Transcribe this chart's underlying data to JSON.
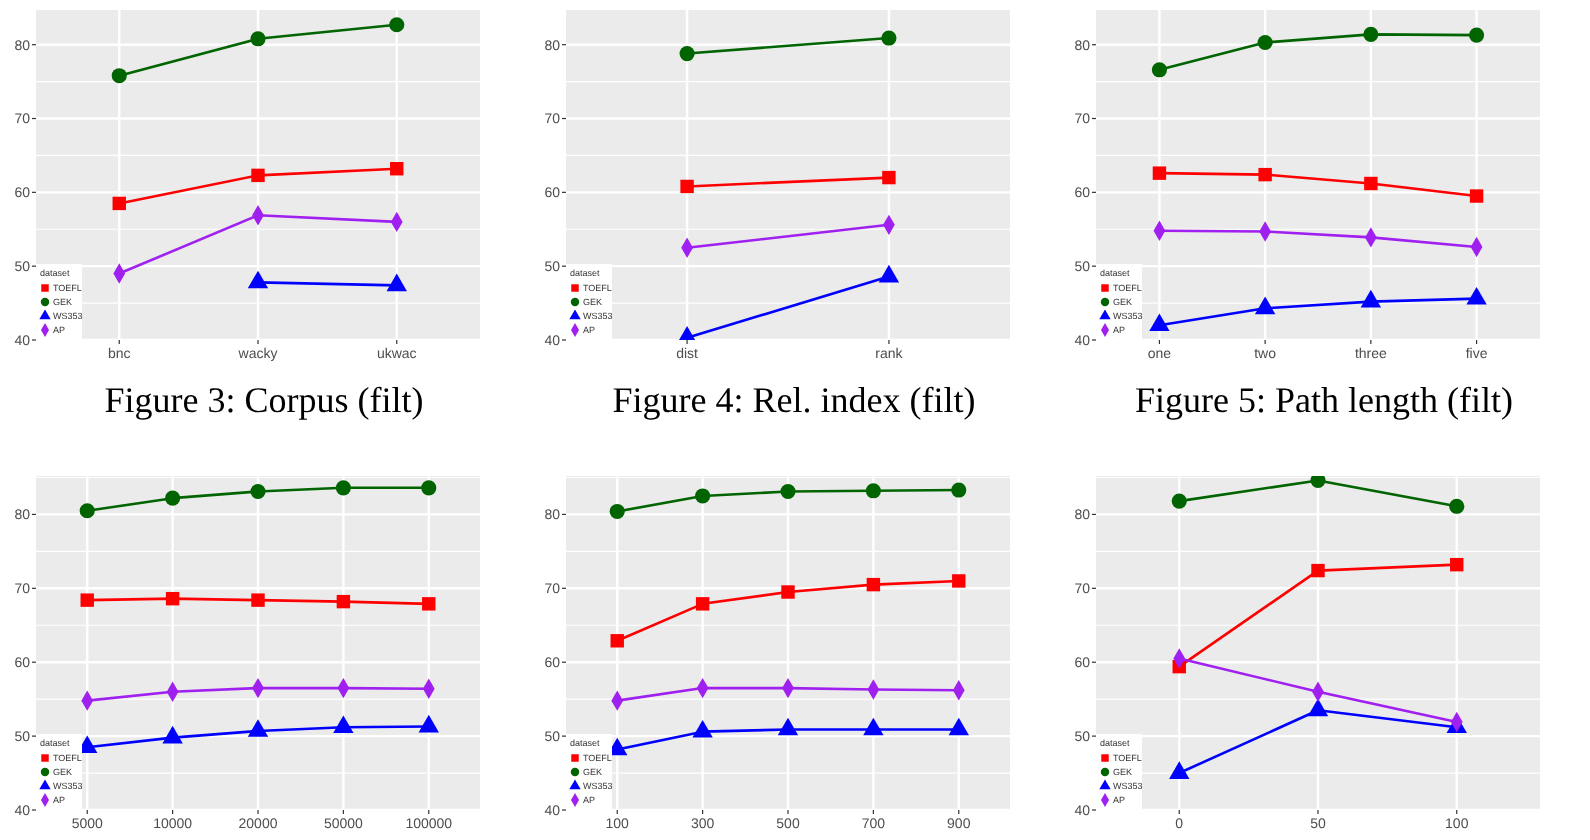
{
  "chart_data": [
    {
      "type": "line",
      "categories": [
        "bnc",
        "wacky",
        "ukwac"
      ],
      "ylim": [
        40,
        84.7
      ],
      "yticks": [
        40,
        50,
        60,
        70,
        80
      ],
      "grid": true,
      "legend": "bottom left",
      "legend_title": "dataset",
      "annotations": [
        "Figure 3: Corpus (filt)"
      ],
      "series": [
        {
          "name": "TOEFL",
          "color": "#ff0000",
          "marker": "square",
          "values": [
            58.5,
            62.3,
            63.2
          ]
        },
        {
          "name": "GEK",
          "color": "#006400",
          "marker": "circle",
          "values": [
            75.8,
            80.8,
            82.7
          ]
        },
        {
          "name": "WS353",
          "color": "#0000ff",
          "marker": "triangle",
          "values": [
            null,
            47.8,
            47.4
          ]
        },
        {
          "name": "AP",
          "color": "#a020f0",
          "marker": "diamond",
          "values": [
            49.0,
            56.9,
            56.0
          ]
        }
      ]
    },
    {
      "type": "line",
      "categories": [
        "dist",
        "rank"
      ],
      "ylim": [
        40,
        84.7
      ],
      "yticks": [
        40,
        50,
        60,
        70,
        80
      ],
      "grid": true,
      "legend": "bottom left",
      "legend_title": "dataset",
      "annotations": [
        "Figure 4: Rel. index (filt)"
      ],
      "series": [
        {
          "name": "TOEFL",
          "color": "#ff0000",
          "marker": "square",
          "values": [
            60.8,
            62.0
          ]
        },
        {
          "name": "GEK",
          "color": "#006400",
          "marker": "circle",
          "values": [
            78.8,
            80.9
          ]
        },
        {
          "name": "WS353",
          "color": "#0000ff",
          "marker": "triangle",
          "values": [
            40.3,
            48.6
          ]
        },
        {
          "name": "AP",
          "color": "#a020f0",
          "marker": "diamond",
          "values": [
            52.5,
            55.6
          ]
        }
      ]
    },
    {
      "type": "line",
      "categories": [
        "one",
        "two",
        "three",
        "five"
      ],
      "ylim": [
        40,
        84.7
      ],
      "yticks": [
        40,
        50,
        60,
        70,
        80
      ],
      "grid": true,
      "legend": "bottom left",
      "legend_title": "dataset",
      "annotations": [
        "Figure 5: Path length (filt)"
      ],
      "series": [
        {
          "name": "TOEFL",
          "color": "#ff0000",
          "marker": "square",
          "values": [
            62.6,
            62.4,
            61.2,
            59.5
          ]
        },
        {
          "name": "GEK",
          "color": "#006400",
          "marker": "circle",
          "values": [
            76.6,
            80.3,
            81.4,
            81.3
          ]
        },
        {
          "name": "WS353",
          "color": "#0000ff",
          "marker": "triangle",
          "values": [
            42.0,
            44.3,
            45.2,
            45.6
          ]
        },
        {
          "name": "AP",
          "color": "#a020f0",
          "marker": "diamond",
          "values": [
            54.8,
            54.7,
            53.9,
            52.6
          ]
        }
      ]
    },
    {
      "type": "line",
      "categories": [
        "5000",
        "10000",
        "20000",
        "50000",
        "100000"
      ],
      "ylim": [
        40,
        85.2
      ],
      "yticks": [
        40,
        50,
        60,
        70,
        80
      ],
      "grid": true,
      "legend": "bottom left",
      "legend_title": "dataset",
      "series": [
        {
          "name": "TOEFL",
          "color": "#ff0000",
          "marker": "square",
          "values": [
            68.4,
            68.6,
            68.4,
            68.2,
            67.9
          ]
        },
        {
          "name": "GEK",
          "color": "#006400",
          "marker": "circle",
          "values": [
            80.5,
            82.2,
            83.1,
            83.6,
            83.6
          ]
        },
        {
          "name": "WS353",
          "color": "#0000ff",
          "marker": "triangle",
          "values": [
            48.5,
            49.8,
            50.7,
            51.2,
            51.3
          ]
        },
        {
          "name": "AP",
          "color": "#a020f0",
          "marker": "diamond",
          "values": [
            54.8,
            56.0,
            56.5,
            56.5,
            56.4
          ]
        }
      ]
    },
    {
      "type": "line",
      "categories": [
        "100",
        "300",
        "500",
        "700",
        "900"
      ],
      "ylim": [
        40,
        85.2
      ],
      "yticks": [
        40,
        50,
        60,
        70,
        80
      ],
      "grid": true,
      "legend": "bottom left",
      "legend_title": "dataset",
      "series": [
        {
          "name": "TOEFL",
          "color": "#ff0000",
          "marker": "square",
          "values": [
            62.9,
            67.9,
            69.5,
            70.5,
            71.0
          ]
        },
        {
          "name": "GEK",
          "color": "#006400",
          "marker": "circle",
          "values": [
            80.4,
            82.5,
            83.1,
            83.2,
            83.3
          ]
        },
        {
          "name": "WS353",
          "color": "#0000ff",
          "marker": "triangle",
          "values": [
            48.2,
            50.6,
            50.9,
            50.9,
            50.9
          ]
        },
        {
          "name": "AP",
          "color": "#a020f0",
          "marker": "diamond",
          "values": [
            54.8,
            56.5,
            56.5,
            56.3,
            56.2
          ]
        }
      ]
    },
    {
      "type": "line",
      "categories": [
        "0",
        "50",
        "100"
      ],
      "ylim": [
        40,
        85.2
      ],
      "yticks": [
        40,
        50,
        60,
        70,
        80
      ],
      "grid": true,
      "legend": "bottom left",
      "legend_title": "dataset",
      "series": [
        {
          "name": "TOEFL",
          "color": "#ff0000",
          "marker": "square",
          "values": [
            59.4,
            72.4,
            73.2
          ]
        },
        {
          "name": "GEK",
          "color": "#006400",
          "marker": "circle",
          "values": [
            81.8,
            84.6,
            81.1
          ]
        },
        {
          "name": "WS353",
          "color": "#0000ff",
          "marker": "triangle",
          "values": [
            45.0,
            53.5,
            51.2
          ]
        },
        {
          "name": "AP",
          "color": "#a020f0",
          "marker": "diamond",
          "values": [
            60.5,
            56.0,
            51.9
          ]
        }
      ]
    }
  ]
}
